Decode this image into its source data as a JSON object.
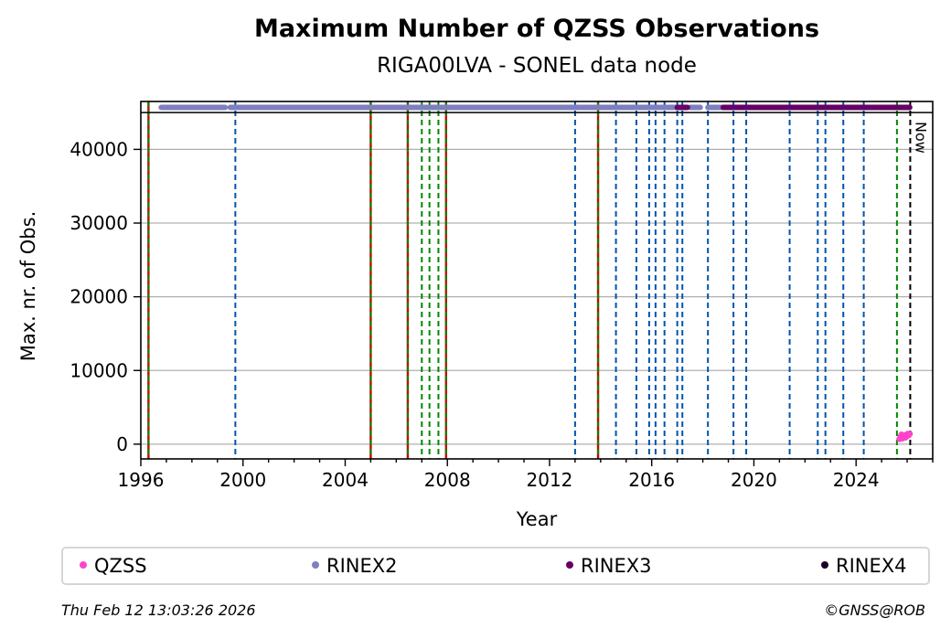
{
  "chart_data": {
    "type": "scatter",
    "title": "Maximum Number of QZSS Observations",
    "subtitle": "RIGA00LVA - SONEL data node",
    "xlabel": "Year",
    "ylabel": "Max. nr. of Obs.",
    "xlim": [
      1996.0,
      2027.0
    ],
    "ylim": [
      -2000,
      46500
    ],
    "x_ticks": [
      1996,
      2000,
      2004,
      2008,
      2012,
      2016,
      2020,
      2024
    ],
    "y_ticks": [
      0,
      10000,
      20000,
      30000,
      40000
    ],
    "grid": "horizontal",
    "max_line": 45000,
    "now_label": "Now",
    "now_x": 2026.12,
    "legend_position": "bottom",
    "series": [
      {
        "name": "QZSS",
        "color": "#ff44cc",
        "points": [
          [
            2025.7,
            700
          ],
          [
            2025.74,
            1000
          ],
          [
            2025.78,
            1300
          ],
          [
            2025.82,
            800
          ],
          [
            2025.86,
            1100
          ],
          [
            2025.9,
            1200
          ],
          [
            2025.94,
            900
          ],
          [
            2025.98,
            1300
          ],
          [
            2026.02,
            1400
          ],
          [
            2026.06,
            1200
          ],
          [
            2026.1,
            1400
          ]
        ]
      },
      {
        "name": "RINEX2",
        "color": "#7f7fbf",
        "ranges": [
          [
            1996.8,
            1999.3
          ],
          [
            1999.5,
            2017.0
          ],
          [
            2017.5,
            2017.9
          ],
          [
            2018.2,
            2018.8
          ]
        ],
        "y": 45700
      },
      {
        "name": "RINEX3",
        "color": "#660066",
        "ranges": [
          [
            2017.0,
            2017.4
          ],
          [
            2018.8,
            2026.1
          ]
        ],
        "y": 45700
      },
      {
        "name": "RINEX4",
        "color": "#1a0026",
        "ranges": [],
        "y": 45700
      }
    ],
    "events": {
      "antenna_changes": [
        1996.3,
        2005.0,
        2006.45,
        2007.95,
        2013.9
      ],
      "receiver_changes": [
        1996.3,
        2005.0,
        2006.45,
        2007.0,
        2007.3,
        2007.65,
        2007.95,
        2013.9,
        2025.6
      ],
      "firmware_changes": [
        1999.7,
        2013.0,
        2014.6,
        2015.4,
        2015.9,
        2016.15,
        2016.5,
        2017.0,
        2017.2,
        2018.2,
        2019.2,
        2019.7,
        2021.4,
        2022.5,
        2022.8,
        2023.5,
        2024.3
      ]
    }
  },
  "legend": {
    "items": [
      {
        "label": "QZSS",
        "color": "#ff44cc"
      },
      {
        "label": "RINEX2",
        "color": "#7f7fbf"
      },
      {
        "label": "RINEX3",
        "color": "#660066"
      },
      {
        "label": "RINEX4",
        "color": "#1a0026"
      }
    ]
  },
  "footer": {
    "timestamp": "Thu Feb 12 13:03:26 2026",
    "copyright": "©GNSS@ROB"
  }
}
